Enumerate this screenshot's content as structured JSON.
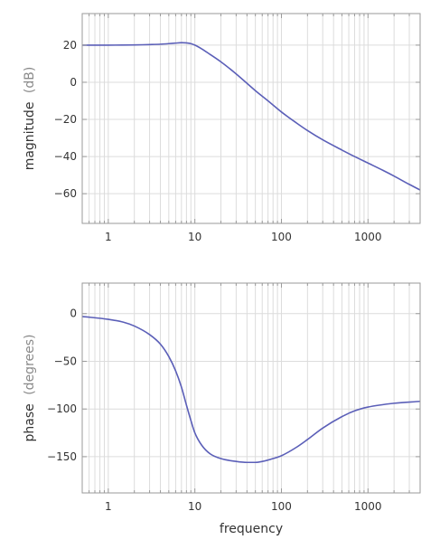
{
  "chart_data": [
    {
      "type": "line",
      "title": "",
      "xlabel": "",
      "ylabel": "magnitude",
      "ylabel_unit": "(dB)",
      "x_scale": "log",
      "xlim": [
        0.5,
        4000
      ],
      "ylim": [
        -76,
        37
      ],
      "x_ticks": [
        1,
        10,
        100,
        1000
      ],
      "x_tick_labels": [
        "1",
        "10",
        "100",
        "1000"
      ],
      "y_ticks": [
        20,
        0,
        -20,
        -40,
        -60
      ],
      "y_tick_labels": [
        "20",
        "0",
        "−20",
        "−40",
        "−60"
      ],
      "grid": true,
      "line_color": "#5b5fb8",
      "series": [
        {
          "x": [
            0.5,
            1,
            2,
            3,
            4,
            5,
            6,
            7,
            8,
            9,
            10,
            12,
            15,
            20,
            30,
            50,
            70,
            100,
            150,
            200,
            300,
            500,
            700,
            1000,
            1500,
            2000,
            3000,
            4000
          ],
          "values": [
            20,
            20,
            20.1,
            20.3,
            20.5,
            20.8,
            21.1,
            21.3,
            21.2,
            20.8,
            20,
            18,
            15,
            11,
            4.5,
            -4.5,
            -10,
            -16,
            -22,
            -26,
            -31,
            -36.5,
            -40,
            -43.5,
            -47.5,
            -50.5,
            -55,
            -58
          ]
        }
      ]
    },
    {
      "type": "line",
      "title": "",
      "xlabel": "frequency",
      "ylabel": "phase",
      "ylabel_unit": "(degrees)",
      "x_scale": "log",
      "xlim": [
        0.5,
        4000
      ],
      "ylim": [
        -188,
        32
      ],
      "x_ticks": [
        1,
        10,
        100,
        1000
      ],
      "x_tick_labels": [
        "1",
        "10",
        "100",
        "1000"
      ],
      "y_ticks": [
        0,
        -50,
        -100,
        -150
      ],
      "y_tick_labels": [
        "0",
        "−50",
        "−100",
        "−150"
      ],
      "grid": true,
      "line_color": "#5b5fb8",
      "series": [
        {
          "x": [
            0.5,
            1,
            1.5,
            2,
            3,
            4,
            5,
            6,
            7,
            8,
            9,
            10,
            12,
            15,
            20,
            30,
            40,
            50,
            60,
            80,
            100,
            150,
            200,
            300,
            500,
            700,
            1000,
            2000,
            4000
          ],
          "values": [
            -3,
            -6,
            -9,
            -13,
            -22,
            -32,
            -45,
            -60,
            -77,
            -96,
            -112,
            -125,
            -138,
            -147,
            -152,
            -155,
            -156,
            -156,
            -155,
            -152,
            -149,
            -140,
            -132,
            -120,
            -108,
            -102,
            -98,
            -94,
            -92
          ]
        }
      ]
    }
  ]
}
